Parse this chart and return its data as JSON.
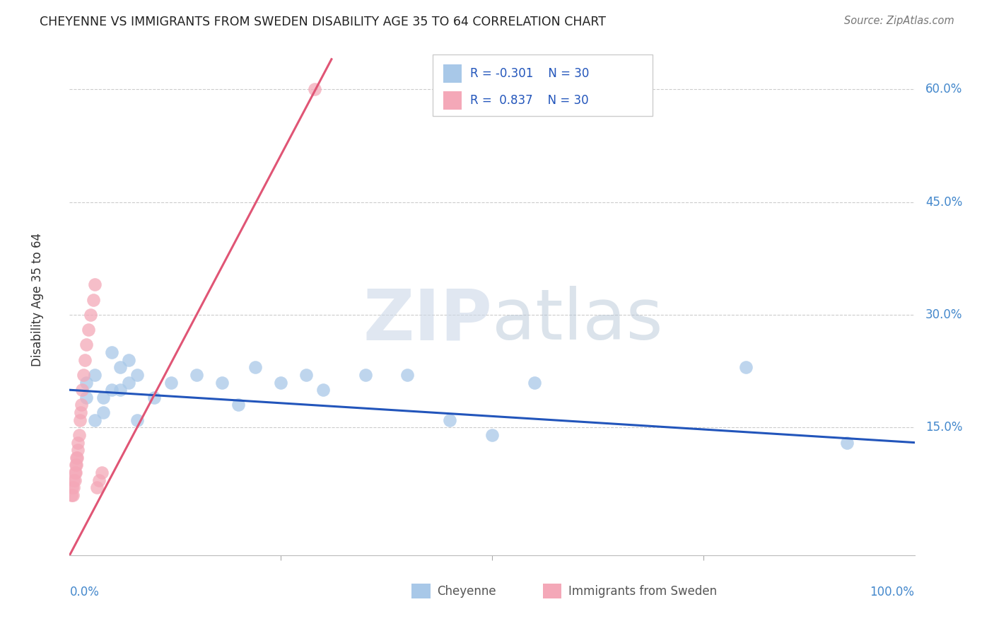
{
  "title": "CHEYENNE VS IMMIGRANTS FROM SWEDEN DISABILITY AGE 35 TO 64 CORRELATION CHART",
  "source": "Source: ZipAtlas.com",
  "ylabel": "Disability Age 35 to 64",
  "ytick_values": [
    0.0,
    0.15,
    0.3,
    0.45,
    0.6
  ],
  "ytick_labels": [
    "",
    "15.0%",
    "30.0%",
    "45.0%",
    "60.0%"
  ],
  "xlim": [
    0.0,
    1.0
  ],
  "ylim": [
    -0.02,
    0.66
  ],
  "legend_r_blue": "-0.301",
  "legend_r_pink": "0.837",
  "legend_n": "30",
  "cheyenne_color": "#a8c8e8",
  "sweden_color": "#f4a8b8",
  "blue_line_color": "#2255bb",
  "pink_line_color": "#e05575",
  "watermark_zip": "ZIP",
  "watermark_atlas": "atlas",
  "cheyenne_x": [
    0.02,
    0.02,
    0.03,
    0.03,
    0.04,
    0.04,
    0.05,
    0.05,
    0.06,
    0.06,
    0.07,
    0.07,
    0.08,
    0.08,
    0.1,
    0.12,
    0.15,
    0.18,
    0.2,
    0.22,
    0.25,
    0.28,
    0.3,
    0.35,
    0.4,
    0.45,
    0.5,
    0.55,
    0.8,
    0.92
  ],
  "cheyenne_y": [
    0.21,
    0.19,
    0.22,
    0.16,
    0.19,
    0.17,
    0.25,
    0.2,
    0.23,
    0.2,
    0.24,
    0.21,
    0.22,
    0.16,
    0.19,
    0.21,
    0.22,
    0.21,
    0.18,
    0.23,
    0.21,
    0.22,
    0.2,
    0.22,
    0.22,
    0.16,
    0.14,
    0.21,
    0.23,
    0.13
  ],
  "sweden_x": [
    0.002,
    0.003,
    0.004,
    0.005,
    0.005,
    0.006,
    0.006,
    0.007,
    0.007,
    0.008,
    0.008,
    0.009,
    0.01,
    0.01,
    0.011,
    0.012,
    0.013,
    0.014,
    0.015,
    0.016,
    0.018,
    0.02,
    0.022,
    0.025,
    0.028,
    0.03,
    0.032,
    0.035,
    0.038,
    0.29
  ],
  "sweden_y": [
    0.06,
    0.07,
    0.06,
    0.07,
    0.08,
    0.08,
    0.09,
    0.09,
    0.1,
    0.1,
    0.11,
    0.11,
    0.12,
    0.13,
    0.14,
    0.16,
    0.17,
    0.18,
    0.2,
    0.22,
    0.24,
    0.26,
    0.28,
    0.3,
    0.32,
    0.34,
    0.07,
    0.08,
    0.09,
    0.6
  ],
  "pink_line_x": [
    0.0,
    0.31
  ],
  "pink_line_y": [
    -0.02,
    0.64
  ],
  "blue_line_x": [
    0.0,
    1.0
  ],
  "blue_line_y": [
    0.2,
    0.13
  ]
}
